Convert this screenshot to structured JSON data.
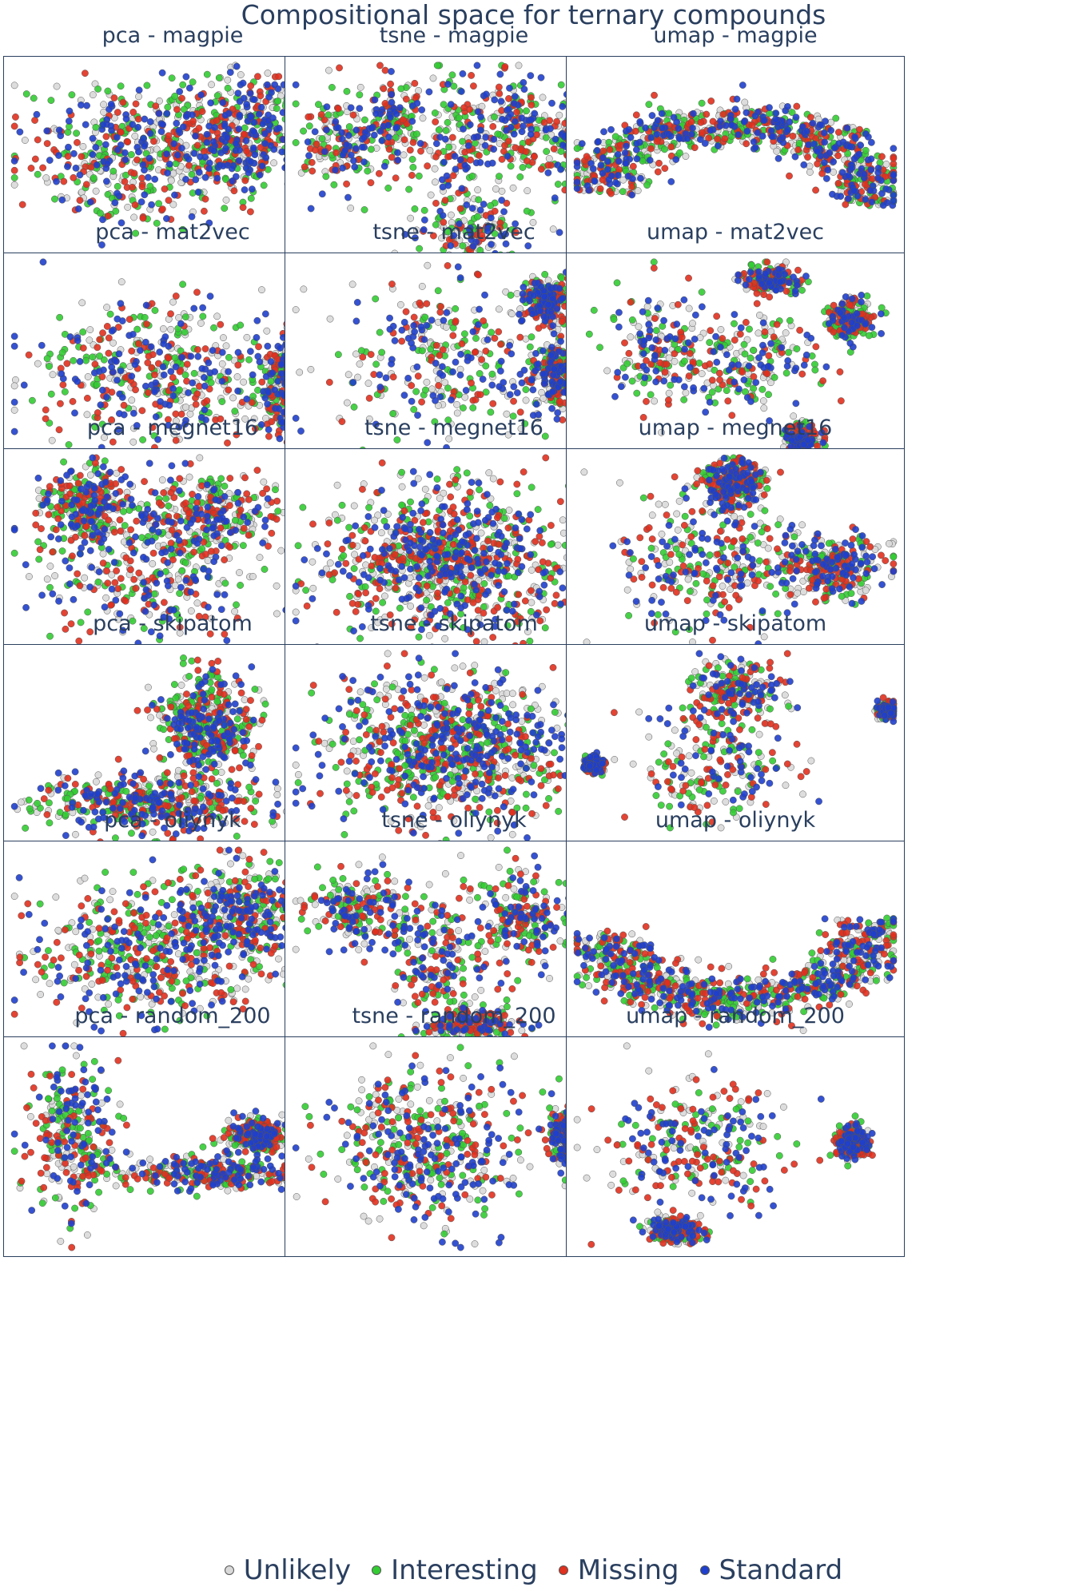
{
  "title": "Compositional space for ternary compounds",
  "colors": {
    "Unlikely": "#d9d9d9",
    "Interesting": "#33cc33",
    "Missing": "#e0301e",
    "Standard": "#1f3fcc"
  },
  "legend": [
    "Unlikely",
    "Interesting",
    "Missing",
    "Standard"
  ],
  "panels": [
    "pca - magpie",
    "tsne - magpie",
    "umap - magpie",
    "pca - mat2vec",
    "tsne - mat2vec",
    "umap - mat2vec",
    "pca - megnet16",
    "tsne - megnet16",
    "umap - megnet16",
    "pca - skipatom",
    "tsne - skipatom",
    "umap - skipatom",
    "pca - oliynyk",
    "tsne - oliynyk",
    "umap - oliynyk",
    "pca - random_200",
    "tsne - random_200",
    "umap - random_200"
  ],
  "chart_data": {
    "type": "scatter",
    "title": "Compositional space for ternary compounds",
    "grid": false,
    "legend_position": "bottom-center",
    "series": [
      {
        "name": "Unlikely"
      },
      {
        "name": "Interesting"
      },
      {
        "name": "Missing"
      },
      {
        "name": "Standard"
      }
    ],
    "subplots": [
      {
        "title": "pca - magpie"
      },
      {
        "title": "tsne - magpie"
      },
      {
        "title": "umap - magpie"
      },
      {
        "title": "pca - mat2vec"
      },
      {
        "title": "tsne - mat2vec"
      },
      {
        "title": "umap - mat2vec"
      },
      {
        "title": "pca - megnet16"
      },
      {
        "title": "tsne - megnet16"
      },
      {
        "title": "umap - megnet16"
      },
      {
        "title": "pca - skipatom"
      },
      {
        "title": "tsne - skipatom"
      },
      {
        "title": "umap - skipatom"
      },
      {
        "title": "pca - oliynyk"
      },
      {
        "title": "tsne - oliynyk"
      },
      {
        "title": "umap - oliynyk"
      },
      {
        "title": "pca - random_200"
      },
      {
        "title": "tsne - random_200"
      },
      {
        "title": "umap - random_200"
      }
    ]
  }
}
